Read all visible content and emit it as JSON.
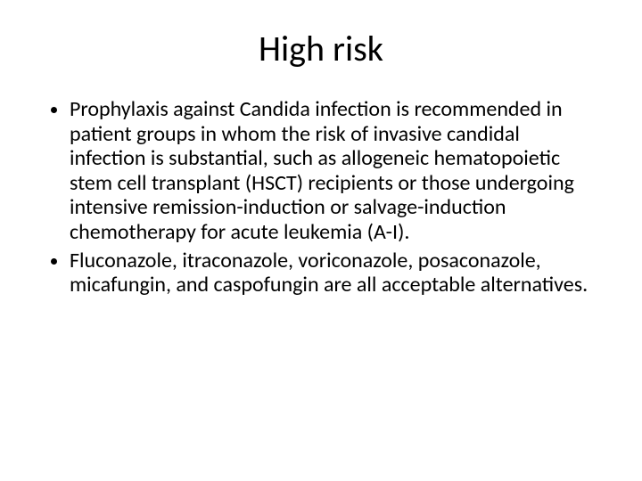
{
  "slide": {
    "title": "High risk",
    "title_fontsize": 40,
    "title_color": "#000000",
    "body_fontsize": 24,
    "body_color": "#000000",
    "background_color": "#ffffff",
    "font_family": "Calibri",
    "bullets": [
      "Prophylaxis against Candida infection is recommended in patient groups in whom the risk of invasive candidal infection is substantial, such as allogeneic hematopoietic stem cell transplant (HSCT) recipients or those undergoing intensive remission-induction or salvage-induction chemotherapy for acute leukemia (A-I).",
      "Fluconazole, itraconazole, voriconazole, posaconazole, micafungin, and caspofungin are all acceptable alternatives."
    ]
  }
}
